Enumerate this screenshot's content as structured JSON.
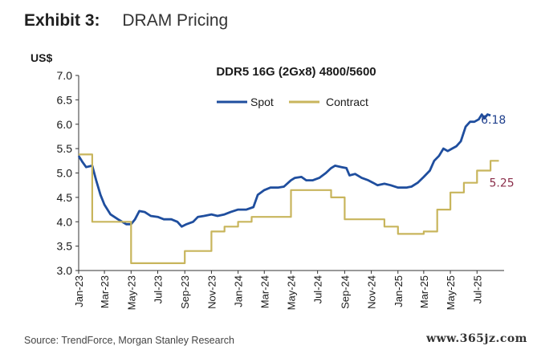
{
  "exhibit": {
    "label": "Exhibit 3:",
    "title": "DRAM Pricing"
  },
  "source": "Source: TrendForce, Morgan Stanley Research",
  "watermark": "www.365jz.com",
  "chart_data": {
    "type": "line",
    "title": "DDR5 16G (2Gx8) 4800/5600",
    "ylabel": "US$",
    "xlabel": "",
    "ylim": [
      3.0,
      7.0
    ],
    "yticks": [
      "3.0",
      "3.5",
      "4.0",
      "4.5",
      "5.0",
      "5.5",
      "6.0",
      "6.5",
      "7.0"
    ],
    "xlim": [
      "2023-01",
      "2025-09"
    ],
    "xticks": [
      "Jan-23",
      "Mar-23",
      "May-23",
      "Jul-23",
      "Sep-23",
      "Nov-23",
      "Jan-24",
      "Mar-24",
      "May-24",
      "Jul-24",
      "Sep-24",
      "Nov-24",
      "Jan-25",
      "Mar-25",
      "May-25",
      "Jul-25"
    ],
    "grid": false,
    "legend_position": "top-center",
    "series": [
      {
        "name": "Spot",
        "color": "#1f4e9e",
        "end_label": "6.18",
        "end_label_color": "#1f3f8c",
        "points": [
          [
            "2023-01-01",
            5.35
          ],
          [
            "2023-01-10",
            5.22
          ],
          [
            "2023-01-18",
            5.12
          ],
          [
            "2023-02-01",
            5.15
          ],
          [
            "2023-02-10",
            4.85
          ],
          [
            "2023-02-20",
            4.55
          ],
          [
            "2023-03-01",
            4.35
          ],
          [
            "2023-03-15",
            4.15
          ],
          [
            "2023-04-01",
            4.05
          ],
          [
            "2023-04-20",
            3.95
          ],
          [
            "2023-05-01",
            3.95
          ],
          [
            "2023-05-10",
            4.05
          ],
          [
            "2023-05-20",
            4.22
          ],
          [
            "2023-06-01",
            4.2
          ],
          [
            "2023-06-15",
            4.12
          ],
          [
            "2023-07-01",
            4.1
          ],
          [
            "2023-07-15",
            4.05
          ],
          [
            "2023-08-01",
            4.05
          ],
          [
            "2023-08-15",
            4.0
          ],
          [
            "2023-08-25",
            3.9
          ],
          [
            "2023-09-05",
            3.95
          ],
          [
            "2023-09-20",
            4.0
          ],
          [
            "2023-10-01",
            4.1
          ],
          [
            "2023-10-15",
            4.12
          ],
          [
            "2023-11-01",
            4.15
          ],
          [
            "2023-11-15",
            4.12
          ],
          [
            "2023-12-01",
            4.15
          ],
          [
            "2023-12-15",
            4.2
          ],
          [
            "2024-01-01",
            4.25
          ],
          [
            "2024-01-20",
            4.25
          ],
          [
            "2024-02-05",
            4.3
          ],
          [
            "2024-02-15",
            4.55
          ],
          [
            "2024-03-01",
            4.65
          ],
          [
            "2024-03-15",
            4.7
          ],
          [
            "2024-04-01",
            4.7
          ],
          [
            "2024-04-15",
            4.72
          ],
          [
            "2024-05-01",
            4.85
          ],
          [
            "2024-05-10",
            4.9
          ],
          [
            "2024-05-25",
            4.92
          ],
          [
            "2024-06-05",
            4.85
          ],
          [
            "2024-06-20",
            4.85
          ],
          [
            "2024-07-05",
            4.9
          ],
          [
            "2024-07-20",
            5.0
          ],
          [
            "2024-08-01",
            5.1
          ],
          [
            "2024-08-10",
            5.15
          ],
          [
            "2024-08-25",
            5.12
          ],
          [
            "2024-09-05",
            5.1
          ],
          [
            "2024-09-12",
            4.95
          ],
          [
            "2024-09-25",
            4.98
          ],
          [
            "2024-10-10",
            4.9
          ],
          [
            "2024-10-25",
            4.85
          ],
          [
            "2024-11-05",
            4.8
          ],
          [
            "2024-11-15",
            4.75
          ],
          [
            "2024-12-01",
            4.78
          ],
          [
            "2024-12-15",
            4.75
          ],
          [
            "2025-01-01",
            4.7
          ],
          [
            "2025-01-20",
            4.7
          ],
          [
            "2025-02-01",
            4.72
          ],
          [
            "2025-02-15",
            4.8
          ],
          [
            "2025-03-01",
            4.92
          ],
          [
            "2025-03-15",
            5.05
          ],
          [
            "2025-03-25",
            5.25
          ],
          [
            "2025-04-05",
            5.35
          ],
          [
            "2025-04-15",
            5.5
          ],
          [
            "2025-04-25",
            5.45
          ],
          [
            "2025-05-05",
            5.5
          ],
          [
            "2025-05-15",
            5.55
          ],
          [
            "2025-05-25",
            5.65
          ],
          [
            "2025-06-05",
            5.95
          ],
          [
            "2025-06-15",
            6.05
          ],
          [
            "2025-06-25",
            6.05
          ],
          [
            "2025-07-05",
            6.1
          ],
          [
            "2025-07-12",
            6.2
          ],
          [
            "2025-07-18",
            6.12
          ],
          [
            "2025-07-25",
            6.2
          ],
          [
            "2025-08-01",
            6.18
          ]
        ]
      },
      {
        "name": "Contract",
        "color": "#c8b55c",
        "end_label": "5.25",
        "end_label_color": "#8b2f4b",
        "step": true,
        "points": [
          [
            "2023-01-01",
            5.38
          ],
          [
            "2023-02-01",
            4.0
          ],
          [
            "2023-05-01",
            3.15
          ],
          [
            "2023-09-01",
            3.4
          ],
          [
            "2023-11-01",
            3.8
          ],
          [
            "2023-12-01",
            3.9
          ],
          [
            "2024-01-01",
            4.0
          ],
          [
            "2024-02-01",
            4.1
          ],
          [
            "2024-05-01",
            4.65
          ],
          [
            "2024-08-01",
            4.5
          ],
          [
            "2024-09-01",
            4.05
          ],
          [
            "2024-12-01",
            3.9
          ],
          [
            "2025-01-01",
            3.75
          ],
          [
            "2025-03-01",
            3.8
          ],
          [
            "2025-04-01",
            4.25
          ],
          [
            "2025-05-01",
            4.6
          ],
          [
            "2025-06-01",
            4.8
          ],
          [
            "2025-07-01",
            5.05
          ],
          [
            "2025-08-01",
            5.25
          ],
          [
            "2025-08-20",
            5.25
          ]
        ]
      }
    ]
  }
}
